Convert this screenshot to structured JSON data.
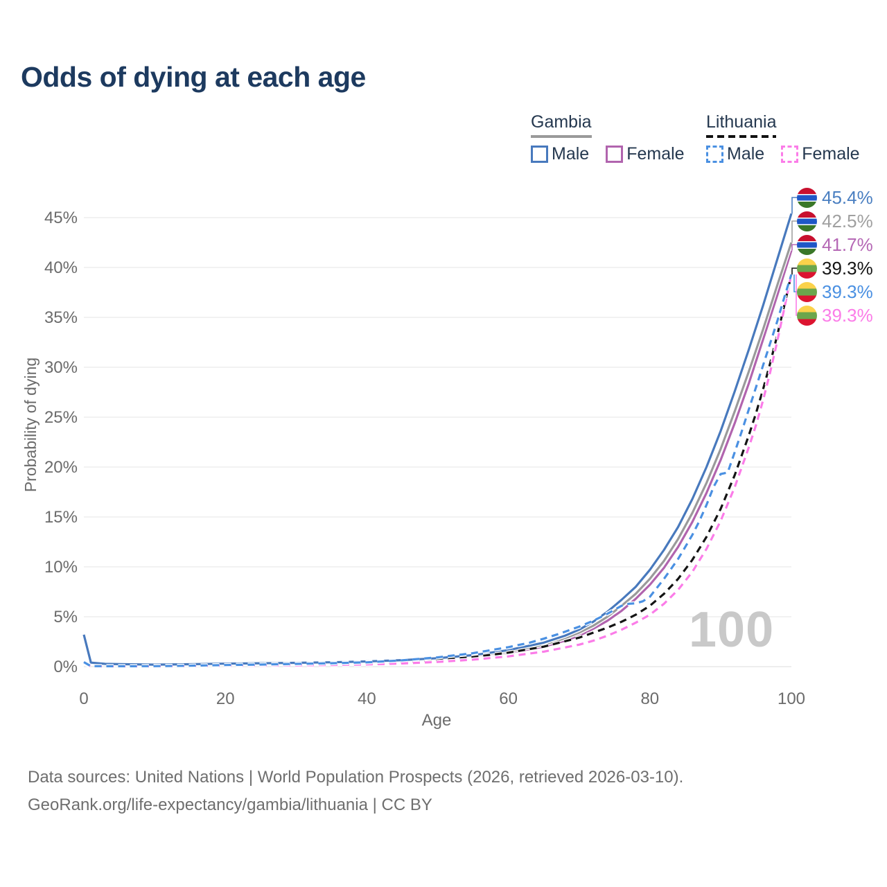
{
  "title": "Odds of dying at each age",
  "legend": {
    "groups": [
      {
        "label": "Gambia",
        "style": "solid",
        "items": [
          {
            "label": "Male",
            "color": "#4879bd"
          },
          {
            "label": "Female",
            "color": "#b164ae"
          }
        ]
      },
      {
        "label": "Lithuania",
        "style": "dashed",
        "items": [
          {
            "label": "Male",
            "color": "#4a90e2"
          },
          {
            "label": "Female",
            "color": "#fb7ce8"
          }
        ]
      }
    ]
  },
  "colors": {
    "title": "#1d3a5f",
    "tick": "#6b6b6b",
    "grid": "#e9e9e9",
    "watermark": "#c9c9c9",
    "gambia_flag": [
      "#c8102e",
      "#ffffff",
      "#1f57c6",
      "#ffffff",
      "#3a7728"
    ],
    "lithuania_flag": [
      "#fbd24b",
      "#6ba64c",
      "#dc1430"
    ]
  },
  "chart_data": {
    "type": "line",
    "title": "Odds of dying at each age",
    "xlabel": "Age",
    "ylabel": "Probability of dying",
    "xlim": [
      0,
      100
    ],
    "ylim": [
      0,
      45
    ],
    "x_ticks": [
      0,
      20,
      40,
      60,
      80,
      100
    ],
    "y_ticks": [
      0,
      5,
      10,
      15,
      20,
      25,
      30,
      35,
      40,
      45
    ],
    "y_tick_suffix": "%",
    "grid": "horizontal-only",
    "legend_position": "top-right",
    "watermark": "100",
    "series": [
      {
        "name": "Gambia Female",
        "color": "#b164ae",
        "dash": false,
        "points": [
          [
            0,
            2.8
          ],
          [
            1,
            0.34
          ],
          [
            3,
            0.24
          ],
          [
            5,
            0.21
          ],
          [
            10,
            0.17
          ],
          [
            15,
            0.2
          ],
          [
            20,
            0.24
          ],
          [
            25,
            0.28
          ],
          [
            30,
            0.32
          ],
          [
            35,
            0.37
          ],
          [
            40,
            0.44
          ],
          [
            45,
            0.55
          ],
          [
            50,
            0.72
          ],
          [
            55,
            0.97
          ],
          [
            60,
            1.38
          ],
          [
            65,
            2.0
          ],
          [
            68,
            2.6
          ],
          [
            70,
            3.1
          ],
          [
            72,
            3.8
          ],
          [
            74,
            4.6
          ],
          [
            76,
            5.6
          ],
          [
            78,
            6.8
          ],
          [
            80,
            8.2
          ],
          [
            82,
            9.9
          ],
          [
            84,
            12.0
          ],
          [
            86,
            14.5
          ],
          [
            88,
            17.4
          ],
          [
            90,
            20.7
          ],
          [
            92,
            24.4
          ],
          [
            94,
            28.4
          ],
          [
            96,
            32.8
          ],
          [
            98,
            37.2
          ],
          [
            100,
            41.7
          ]
        ]
      },
      {
        "name": "Gambia Average",
        "color": "#9a9a9a",
        "dash": false,
        "points": [
          [
            0,
            3.0
          ],
          [
            1,
            0.37
          ],
          [
            3,
            0.26
          ],
          [
            5,
            0.23
          ],
          [
            10,
            0.19
          ],
          [
            15,
            0.22
          ],
          [
            20,
            0.27
          ],
          [
            25,
            0.31
          ],
          [
            30,
            0.35
          ],
          [
            35,
            0.4
          ],
          [
            40,
            0.48
          ],
          [
            45,
            0.6
          ],
          [
            50,
            0.78
          ],
          [
            55,
            1.05
          ],
          [
            60,
            1.5
          ],
          [
            65,
            2.2
          ],
          [
            68,
            2.85
          ],
          [
            70,
            3.4
          ],
          [
            72,
            4.1
          ],
          [
            74,
            5.0
          ],
          [
            76,
            6.1
          ],
          [
            78,
            7.3
          ],
          [
            80,
            8.8
          ],
          [
            82,
            10.6
          ],
          [
            84,
            12.8
          ],
          [
            86,
            15.4
          ],
          [
            88,
            18.4
          ],
          [
            90,
            21.8
          ],
          [
            92,
            25.6
          ],
          [
            94,
            29.6
          ],
          [
            96,
            33.8
          ],
          [
            98,
            38.2
          ],
          [
            100,
            42.5
          ]
        ]
      },
      {
        "name": "Gambia Male",
        "color": "#4879bd",
        "dash": false,
        "points": [
          [
            0,
            3.2
          ],
          [
            1,
            0.4
          ],
          [
            3,
            0.28
          ],
          [
            5,
            0.25
          ],
          [
            10,
            0.2
          ],
          [
            15,
            0.24
          ],
          [
            20,
            0.3
          ],
          [
            25,
            0.34
          ],
          [
            30,
            0.38
          ],
          [
            35,
            0.44
          ],
          [
            40,
            0.52
          ],
          [
            45,
            0.65
          ],
          [
            50,
            0.85
          ],
          [
            55,
            1.15
          ],
          [
            60,
            1.65
          ],
          [
            65,
            2.4
          ],
          [
            68,
            3.1
          ],
          [
            70,
            3.7
          ],
          [
            72,
            4.5
          ],
          [
            74,
            5.5
          ],
          [
            76,
            6.7
          ],
          [
            78,
            8.0
          ],
          [
            80,
            9.7
          ],
          [
            82,
            11.7
          ],
          [
            84,
            14.0
          ],
          [
            86,
            16.8
          ],
          [
            88,
            20.0
          ],
          [
            90,
            23.6
          ],
          [
            92,
            27.6
          ],
          [
            94,
            31.8
          ],
          [
            96,
            36.2
          ],
          [
            98,
            40.8
          ],
          [
            100,
            45.4
          ]
        ]
      },
      {
        "name": "Lithuania Average",
        "color": "#141414",
        "dash": true,
        "points": [
          [
            0,
            0.4
          ],
          [
            1,
            0.04
          ],
          [
            5,
            0.03
          ],
          [
            10,
            0.04
          ],
          [
            15,
            0.07
          ],
          [
            20,
            0.11
          ],
          [
            25,
            0.15
          ],
          [
            30,
            0.2
          ],
          [
            35,
            0.24
          ],
          [
            40,
            0.31
          ],
          [
            45,
            0.45
          ],
          [
            50,
            0.66
          ],
          [
            55,
            0.96
          ],
          [
            60,
            1.4
          ],
          [
            65,
            2.0
          ],
          [
            70,
            2.9
          ],
          [
            72,
            3.4
          ],
          [
            74,
            3.9
          ],
          [
            76,
            4.5
          ],
          [
            78,
            5.2
          ],
          [
            80,
            6.1
          ],
          [
            82,
            7.3
          ],
          [
            84,
            8.8
          ],
          [
            86,
            10.7
          ],
          [
            88,
            13.0
          ],
          [
            90,
            15.8
          ],
          [
            92,
            19.2
          ],
          [
            94,
            23.2
          ],
          [
            95,
            25.4
          ],
          [
            96,
            27.8
          ],
          [
            97,
            30.4
          ],
          [
            98,
            33.2
          ],
          [
            99,
            36.2
          ],
          [
            100,
            39.3
          ]
        ]
      },
      {
        "name": "Lithuania Female",
        "color": "#fb7ce8",
        "dash": true,
        "points": [
          [
            0,
            0.35
          ],
          [
            1,
            0.03
          ],
          [
            5,
            0.02
          ],
          [
            10,
            0.03
          ],
          [
            15,
            0.05
          ],
          [
            20,
            0.07
          ],
          [
            25,
            0.1
          ],
          [
            30,
            0.13
          ],
          [
            35,
            0.17
          ],
          [
            40,
            0.22
          ],
          [
            45,
            0.32
          ],
          [
            50,
            0.47
          ],
          [
            55,
            0.7
          ],
          [
            60,
            1.03
          ],
          [
            65,
            1.5
          ],
          [
            70,
            2.2
          ],
          [
            72,
            2.6
          ],
          [
            74,
            3.1
          ],
          [
            76,
            3.7
          ],
          [
            78,
            4.4
          ],
          [
            80,
            5.2
          ],
          [
            82,
            6.3
          ],
          [
            84,
            7.7
          ],
          [
            86,
            9.5
          ],
          [
            88,
            11.8
          ],
          [
            90,
            14.6
          ],
          [
            92,
            18.0
          ],
          [
            94,
            22.0
          ],
          [
            95,
            24.2
          ],
          [
            96,
            26.7
          ],
          [
            97,
            29.5
          ],
          [
            98,
            32.6
          ],
          [
            99,
            35.9
          ],
          [
            100,
            39.3
          ]
        ]
      },
      {
        "name": "Lithuania Male",
        "color": "#4a90e2",
        "dash": true,
        "points": [
          [
            0,
            0.45
          ],
          [
            1,
            0.05
          ],
          [
            5,
            0.04
          ],
          [
            10,
            0.05
          ],
          [
            15,
            0.09
          ],
          [
            20,
            0.16
          ],
          [
            25,
            0.21
          ],
          [
            30,
            0.28
          ],
          [
            35,
            0.34
          ],
          [
            40,
            0.43
          ],
          [
            45,
            0.63
          ],
          [
            50,
            0.93
          ],
          [
            55,
            1.35
          ],
          [
            60,
            1.95
          ],
          [
            63,
            2.4
          ],
          [
            65,
            2.8
          ],
          [
            67,
            3.25
          ],
          [
            70,
            4.0
          ],
          [
            72,
            4.6
          ],
          [
            74,
            5.3
          ],
          [
            76,
            6.1
          ],
          [
            77,
            6.3
          ],
          [
            78,
            6.35
          ],
          [
            79,
            6.55
          ],
          [
            80,
            7.0
          ],
          [
            81,
            7.9
          ],
          [
            82,
            8.8
          ],
          [
            83,
            9.8
          ],
          [
            84,
            10.8
          ],
          [
            85,
            12.0
          ],
          [
            86,
            13.2
          ],
          [
            87,
            14.6
          ],
          [
            88,
            16.2
          ],
          [
            89,
            18.0
          ],
          [
            90,
            19.3
          ],
          [
            91,
            19.45
          ],
          [
            92,
            21.5
          ],
          [
            93,
            23.6
          ],
          [
            94,
            25.8
          ],
          [
            95,
            28.0
          ],
          [
            96,
            30.2
          ],
          [
            97,
            32.4
          ],
          [
            98,
            34.6
          ],
          [
            99,
            37.0
          ],
          [
            100,
            39.3
          ]
        ]
      }
    ],
    "end_labels": [
      {
        "flag": "gambia",
        "text": "45.4%",
        "color": "#4a7fc1",
        "series": "Gambia Male"
      },
      {
        "flag": "gambia",
        "text": "42.5%",
        "color": "#a0a0a0",
        "series": "Gambia Average"
      },
      {
        "flag": "gambia",
        "text": "41.7%",
        "color": "#b568b5",
        "series": "Gambia Female"
      },
      {
        "flag": "lithuania",
        "text": "39.3%",
        "color": "#141414",
        "series": "Lithuania Average"
      },
      {
        "flag": "lithuania",
        "text": "39.3%",
        "color": "#4a90e2",
        "series": "Lithuania Male"
      },
      {
        "flag": "lithuania",
        "text": "39.3%",
        "color": "#fb7ce8",
        "series": "Lithuania Female"
      }
    ]
  },
  "footer": {
    "line1": "Data sources: United Nations | World Population Prospects (2026, retrieved 2026-03-10).",
    "line2": "GeoRank.org/life-expectancy/gambia/lithuania | CC BY"
  }
}
